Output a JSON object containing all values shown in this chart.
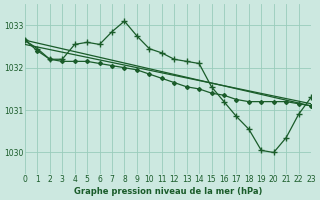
{
  "title": "Graphe pression niveau de la mer (hPa)",
  "background_color": "#cce8e0",
  "grid_color": "#99ccbb",
  "line_color": "#1a5c2a",
  "xlim": [
    0,
    23
  ],
  "ylim": [
    1029.5,
    1033.5
  ],
  "yticks": [
    1030,
    1031,
    1032,
    1033
  ],
  "xticks": [
    0,
    1,
    2,
    3,
    4,
    5,
    6,
    7,
    8,
    9,
    10,
    11,
    12,
    13,
    14,
    15,
    16,
    17,
    18,
    19,
    20,
    21,
    22,
    23
  ],
  "series1_straight": {
    "x": [
      0,
      23
    ],
    "y": [
      1032.65,
      1031.1
    ]
  },
  "series2_straight": {
    "x": [
      0,
      23
    ],
    "y": [
      1032.55,
      1031.15
    ]
  },
  "series3_jagged": {
    "x": [
      0,
      1,
      2,
      3,
      4,
      5,
      6,
      7,
      8,
      9,
      10,
      11,
      12,
      13,
      14,
      15,
      16,
      17,
      18,
      19,
      20,
      21,
      22,
      23
    ],
    "y": [
      1032.65,
      1032.45,
      1032.2,
      1032.2,
      1032.55,
      1032.6,
      1032.55,
      1032.85,
      1033.1,
      1032.75,
      1032.45,
      1032.35,
      1032.2,
      1032.15,
      1032.1,
      1031.55,
      1031.2,
      1030.85,
      1030.55,
      1030.05,
      1030.0,
      1030.35,
      1030.9,
      1031.3
    ]
  },
  "series4_mid": {
    "x": [
      0,
      1,
      2,
      3,
      4,
      5,
      6,
      7,
      8,
      9,
      10,
      11,
      12,
      13,
      14,
      15,
      16,
      17,
      18,
      19,
      20,
      21,
      22,
      23
    ],
    "y": [
      1032.65,
      1032.4,
      1032.2,
      1032.15,
      1032.15,
      1032.15,
      1032.1,
      1032.05,
      1032.0,
      1031.95,
      1031.85,
      1031.75,
      1031.65,
      1031.55,
      1031.5,
      1031.4,
      1031.35,
      1031.25,
      1031.2,
      1031.2,
      1031.2,
      1031.2,
      1031.15,
      1031.1
    ]
  }
}
